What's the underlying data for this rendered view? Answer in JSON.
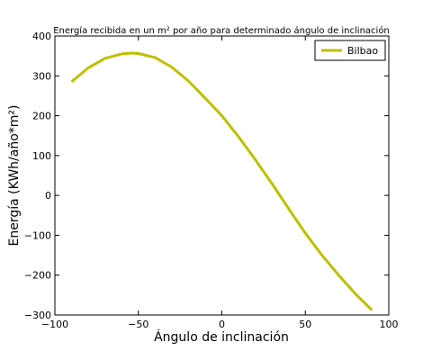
{
  "chart_data": {
    "type": "line",
    "title": "Energía recibida en un m² por año para determinado ángulo de inclinación",
    "xlabel": "Ángulo de inclinación",
    "ylabel": "Energía (KWh/año*m²)",
    "xlim": [
      -100,
      100
    ],
    "ylim": [
      -300,
      400
    ],
    "xticks": [
      -100,
      -50,
      0,
      50,
      100
    ],
    "yticks": [
      -300,
      -200,
      -100,
      0,
      100,
      200,
      300,
      400
    ],
    "xtick_labels": [
      "−100",
      "−50",
      "0",
      "50",
      "100"
    ],
    "ytick_labels": [
      "−300",
      "−200",
      "−100",
      "0",
      "100",
      "200",
      "300",
      "400"
    ],
    "grid": false,
    "legend_position": "top-right",
    "series": [
      {
        "name": "Bilbao",
        "color": "#bfbf00",
        "x": [
          -90,
          -80,
          -70,
          -60,
          -54,
          -50,
          -40,
          -30,
          -20,
          -10,
          0,
          10,
          20,
          30,
          40,
          50,
          60,
          70,
          80,
          90
        ],
        "y": [
          285,
          320,
          344,
          355,
          357,
          356,
          346,
          322,
          287,
          244,
          200,
          147,
          90,
          30,
          -33,
          -95,
          -150,
          -200,
          -247,
          -288
        ]
      }
    ]
  }
}
